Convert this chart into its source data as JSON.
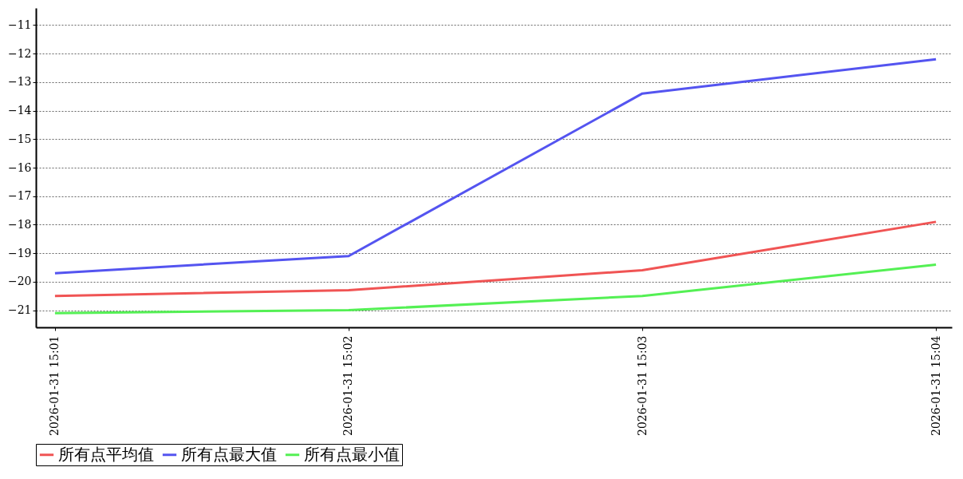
{
  "chart_data": {
    "type": "line",
    "categories": [
      "2026-01-31 15:01",
      "2026-01-31 15:02",
      "2026-01-31 15:03",
      "2026-01-31 15:04"
    ],
    "series": [
      {
        "name": "所有点平均值",
        "color": "#f05454",
        "values": [
          -20.5,
          -20.3,
          -19.6,
          -17.9
        ]
      },
      {
        "name": "所有点最大值",
        "color": "#5454f0",
        "values": [
          -19.7,
          -19.1,
          -13.4,
          -12.2
        ]
      },
      {
        "name": "所有点最小值",
        "color": "#54f054",
        "values": [
          -21.1,
          -21.0,
          -20.5,
          -19.4
        ]
      }
    ],
    "ylim": [
      -21.6,
      -10.4
    ],
    "yticks": [
      -21,
      -20,
      -19,
      -18,
      -17,
      -16,
      -15,
      -14,
      -13,
      -12,
      -11
    ],
    "grid": "y",
    "legend": "bottom",
    "marker": "none",
    "line_style": "solid"
  }
}
